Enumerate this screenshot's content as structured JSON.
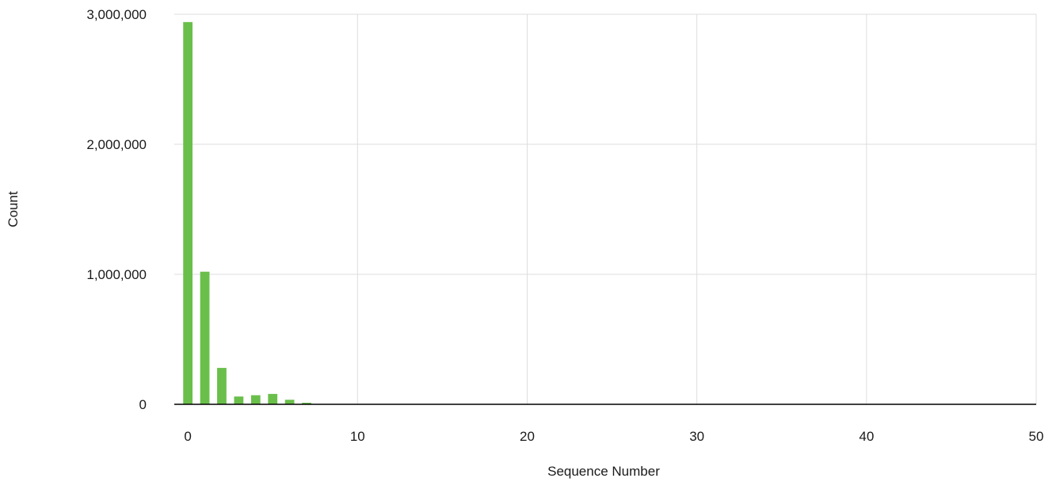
{
  "chart_data": {
    "type": "bar",
    "title": "",
    "xlabel": "Sequence Number",
    "ylabel": "Count",
    "xlim": [
      -0.8,
      50
    ],
    "ylim": [
      0,
      3000000
    ],
    "x_ticks": [
      0,
      10,
      20,
      30,
      40,
      50
    ],
    "y_ticks": [
      0,
      1000000,
      2000000,
      3000000
    ],
    "x_tick_labels": [
      "0",
      "10",
      "20",
      "30",
      "40",
      "50"
    ],
    "y_tick_labels": [
      "0",
      "1,000,000",
      "2,000,000",
      "3,000,000"
    ],
    "grid": true,
    "bar_color": "#6abf4b",
    "x": [
      0,
      1,
      2,
      3,
      4,
      5,
      6,
      7,
      8,
      9,
      10
    ],
    "values": [
      2940000,
      1020000,
      280000,
      60000,
      70000,
      80000,
      35000,
      12000,
      2000,
      1000,
      500
    ]
  }
}
